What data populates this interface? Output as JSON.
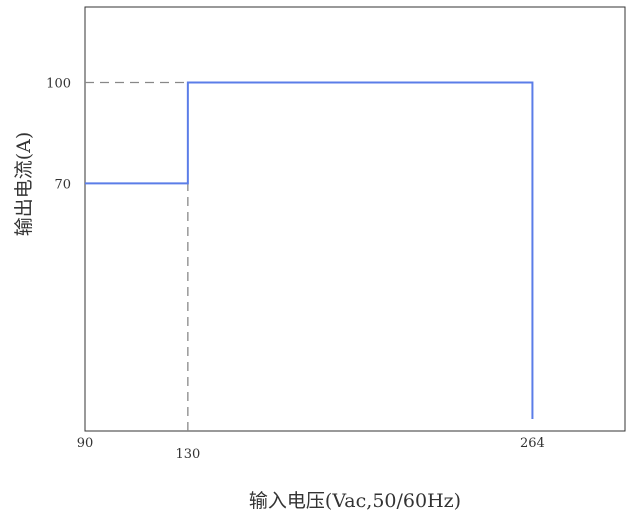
{
  "chart_data": {
    "type": "line",
    "title": "",
    "xlabel": "输入电压(Vac,50/60Hz)",
    "ylabel": "输出电流(A)",
    "xlim": [
      90,
      300
    ],
    "ylim": [
      0,
      115
    ],
    "x_ticks": [
      90,
      130,
      264
    ],
    "x_tick_labels": [
      "90",
      "130",
      "264"
    ],
    "y_ticks": [
      100,
      70
    ],
    "y_tick_labels": [
      "100",
      "70"
    ],
    "grid": false,
    "colors": {
      "series": "#5b7de8",
      "guide": "#888888",
      "frame": "#333333"
    },
    "series": [
      {
        "x": [
          90,
          130,
          130,
          264,
          264
        ],
        "y": [
          70,
          70,
          100,
          100,
          0
        ]
      }
    ],
    "guides": [
      {
        "from": [
          90,
          100
        ],
        "to": [
          130,
          100
        ]
      },
      {
        "from": [
          130,
          0
        ],
        "to": [
          130,
          100
        ]
      }
    ]
  }
}
